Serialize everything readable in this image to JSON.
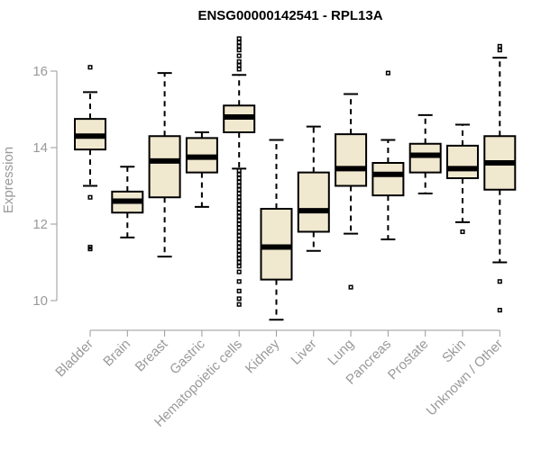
{
  "chart_data": {
    "type": "box",
    "title": "ENSG00000142541 - RPL13A",
    "xlabel": "",
    "ylabel": "Expression",
    "ylim": [
      9.4,
      17.0
    ],
    "yticks": [
      10,
      12,
      14,
      16
    ],
    "ytick_labels": [
      "10",
      "12",
      "14",
      "16"
    ],
    "box_fill": "#f0e8cf",
    "categories": [
      "Bladder",
      "Brain",
      "Breast",
      "Gastric",
      "Hematopoietic cells",
      "Kidney",
      "Liver",
      "Lung",
      "Pancreas",
      "Prostate",
      "Skin",
      "Unknown / Other"
    ],
    "boxes": [
      {
        "name": "Bladder",
        "whisker_low": 13.0,
        "q1": 13.95,
        "median": 14.3,
        "q3": 14.75,
        "whisker_high": 15.45,
        "outliers": [
          16.1,
          12.7,
          11.4,
          11.35
        ]
      },
      {
        "name": "Brain",
        "whisker_low": 11.65,
        "q1": 12.3,
        "median": 12.6,
        "q3": 12.85,
        "whisker_high": 13.5,
        "outliers": []
      },
      {
        "name": "Breast",
        "whisker_low": 11.15,
        "q1": 12.7,
        "median": 13.65,
        "q3": 14.3,
        "whisker_high": 15.95,
        "outliers": []
      },
      {
        "name": "Gastric",
        "whisker_low": 12.45,
        "q1": 13.35,
        "median": 13.75,
        "q3": 14.25,
        "whisker_high": 14.4,
        "outliers": []
      },
      {
        "name": "Hematopoietic cells",
        "whisker_low": 13.45,
        "q1": 14.4,
        "median": 14.8,
        "q3": 15.1,
        "whisker_high": 15.9,
        "outliers": [
          16.05,
          16.15,
          16.25,
          16.4,
          16.55,
          16.65,
          16.75,
          16.85,
          13.4,
          13.3,
          13.2,
          13.1,
          13.0,
          12.9,
          12.8,
          12.7,
          12.6,
          12.5,
          12.4,
          12.3,
          12.2,
          12.1,
          12.0,
          11.9,
          11.8,
          11.7,
          11.6,
          11.5,
          11.4,
          11.3,
          11.2,
          11.1,
          11.0,
          10.9,
          10.75,
          10.5,
          10.25,
          10.05,
          9.9
        ]
      },
      {
        "name": "Kidney",
        "whisker_low": 9.5,
        "q1": 10.55,
        "median": 11.4,
        "q3": 12.4,
        "whisker_high": 14.2,
        "outliers": []
      },
      {
        "name": "Liver",
        "whisker_low": 11.3,
        "q1": 11.8,
        "median": 12.35,
        "q3": 13.35,
        "whisker_high": 14.55,
        "outliers": []
      },
      {
        "name": "Lung",
        "whisker_low": 11.75,
        "q1": 13.0,
        "median": 13.45,
        "q3": 14.35,
        "whisker_high": 15.4,
        "outliers": [
          10.35
        ]
      },
      {
        "name": "Pancreas",
        "whisker_low": 11.6,
        "q1": 12.75,
        "median": 13.3,
        "q3": 13.6,
        "whisker_high": 14.2,
        "outliers": [
          15.95
        ]
      },
      {
        "name": "Prostate",
        "whisker_low": 12.8,
        "q1": 13.35,
        "median": 13.8,
        "q3": 14.1,
        "whisker_high": 14.85,
        "outliers": []
      },
      {
        "name": "Skin",
        "whisker_low": 12.05,
        "q1": 13.2,
        "median": 13.45,
        "q3": 14.05,
        "whisker_high": 14.6,
        "outliers": [
          11.8
        ]
      },
      {
        "name": "Unknown / Other",
        "whisker_low": 11.0,
        "q1": 12.9,
        "median": 13.6,
        "q3": 14.3,
        "whisker_high": 16.35,
        "outliers": [
          16.55,
          16.65,
          10.5,
          9.75
        ]
      }
    ]
  }
}
